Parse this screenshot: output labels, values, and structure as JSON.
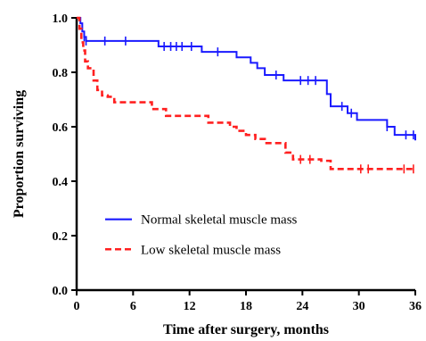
{
  "chart_data": {
    "type": "line",
    "title": "",
    "xlabel": "Time after surgery, months",
    "ylabel": "Proportion surviving",
    "xlim": [
      0,
      36
    ],
    "ylim": [
      0.0,
      1.0
    ],
    "xticks": [
      "0",
      "6",
      "12",
      "18",
      "24",
      "30",
      "36"
    ],
    "yticks": [
      "0.0",
      "0.2",
      "0.4",
      "0.6",
      "0.8",
      "1.0"
    ],
    "grid": false,
    "legend_position": "lower-left",
    "series": [
      {
        "name": "Normal skeletal muscle mass",
        "color": "#1a1aff",
        "style": "solid",
        "steps": [
          [
            0,
            1.0
          ],
          [
            0.4,
            0.98
          ],
          [
            0.6,
            0.95
          ],
          [
            0.8,
            0.93
          ],
          [
            1.0,
            0.915
          ],
          [
            8.7,
            0.895
          ],
          [
            13.3,
            0.875
          ],
          [
            17.0,
            0.855
          ],
          [
            18.5,
            0.835
          ],
          [
            19.2,
            0.815
          ],
          [
            20.0,
            0.79
          ],
          [
            22.0,
            0.77
          ],
          [
            26.6,
            0.72
          ],
          [
            27.0,
            0.675
          ],
          [
            28.8,
            0.65
          ],
          [
            29.8,
            0.625
          ],
          [
            33.0,
            0.6
          ],
          [
            33.8,
            0.57
          ],
          [
            36.0,
            0.55
          ]
        ],
        "censored": [
          [
            0.8,
            0.93
          ],
          [
            1.0,
            0.915
          ],
          [
            3.0,
            0.915
          ],
          [
            5.2,
            0.915
          ],
          [
            9.3,
            0.895
          ],
          [
            10.0,
            0.895
          ],
          [
            10.6,
            0.895
          ],
          [
            11.2,
            0.895
          ],
          [
            12.2,
            0.895
          ],
          [
            15.0,
            0.875
          ],
          [
            21.2,
            0.79
          ],
          [
            23.8,
            0.77
          ],
          [
            24.6,
            0.77
          ],
          [
            25.4,
            0.77
          ],
          [
            28.2,
            0.675
          ],
          [
            29.2,
            0.65
          ],
          [
            33.0,
            0.6
          ],
          [
            35.0,
            0.57
          ],
          [
            35.8,
            0.57
          ]
        ]
      },
      {
        "name": "Low skeletal muscle mass",
        "color": "#ff2020",
        "style": "dashed",
        "steps": [
          [
            0,
            1.0
          ],
          [
            0.3,
            0.96
          ],
          [
            0.5,
            0.91
          ],
          [
            0.7,
            0.88
          ],
          [
            0.9,
            0.84
          ],
          [
            1.2,
            0.815
          ],
          [
            1.8,
            0.77
          ],
          [
            2.2,
            0.735
          ],
          [
            2.7,
            0.715
          ],
          [
            3.3,
            0.71
          ],
          [
            4.0,
            0.69
          ],
          [
            8.0,
            0.665
          ],
          [
            9.5,
            0.64
          ],
          [
            14.0,
            0.615
          ],
          [
            16.3,
            0.6
          ],
          [
            17.0,
            0.585
          ],
          [
            18.0,
            0.57
          ],
          [
            19.0,
            0.555
          ],
          [
            20.0,
            0.54
          ],
          [
            22.2,
            0.505
          ],
          [
            23.0,
            0.48
          ],
          [
            26.0,
            0.475
          ],
          [
            27.0,
            0.445
          ],
          [
            36.0,
            0.445
          ]
        ],
        "censored": [
          [
            23.8,
            0.48
          ],
          [
            24.8,
            0.48
          ],
          [
            30.2,
            0.445
          ],
          [
            31.0,
            0.445
          ],
          [
            34.8,
            0.445
          ],
          [
            35.8,
            0.445
          ]
        ]
      }
    ]
  }
}
